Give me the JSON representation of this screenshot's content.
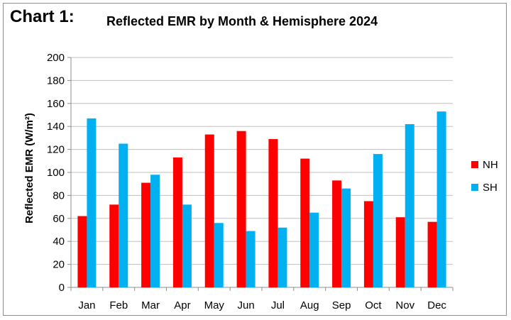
{
  "header": {
    "chart_label": "Chart 1:",
    "title": "Reflected EMR by Month & Hemisphere 2024"
  },
  "chart_data": {
    "type": "bar",
    "title": "Reflected EMR by Month & Hemisphere 2024",
    "xlabel": "",
    "ylabel": "Reflected EMR (W/m²)",
    "ylim": [
      0,
      200
    ],
    "yticks": [
      0,
      20,
      40,
      60,
      80,
      100,
      120,
      140,
      160,
      180,
      200
    ],
    "grid": true,
    "legend_position": "right",
    "categories": [
      "Jan",
      "Feb",
      "Mar",
      "Apr",
      "May",
      "Jun",
      "Jul",
      "Aug",
      "Sep",
      "Oct",
      "Nov",
      "Dec"
    ],
    "series": [
      {
        "name": "NH",
        "color": "#ff0000",
        "values": [
          62,
          72,
          91,
          113,
          133,
          136,
          129,
          112,
          93,
          75,
          61,
          57
        ]
      },
      {
        "name": "SH",
        "color": "#00b0f0",
        "values": [
          147,
          125,
          98,
          72,
          56,
          49,
          52,
          65,
          86,
          116,
          142,
          153
        ]
      }
    ]
  }
}
